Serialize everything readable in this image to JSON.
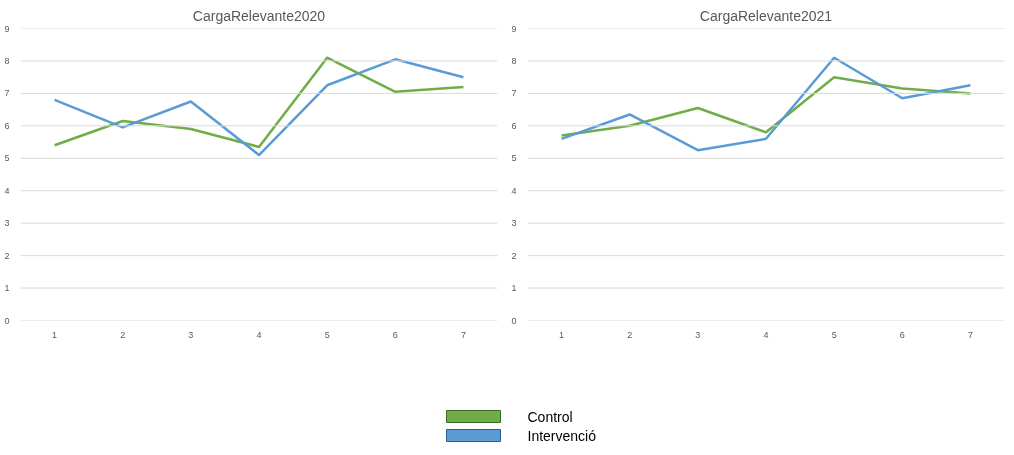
{
  "chart_data": [
    {
      "type": "line",
      "title": "CargaRelevante2020",
      "categories": [
        "1",
        "2",
        "3",
        "4",
        "5",
        "6",
        "7"
      ],
      "ylim": [
        0,
        9
      ],
      "yticks": [
        0,
        1,
        2,
        3,
        4,
        5,
        6,
        7,
        8,
        9
      ],
      "grid": "y",
      "legend": "bottom",
      "marker": "none",
      "series": [
        {
          "name": "Control",
          "color": "#70ad47",
          "values": [
            5.4,
            6.15,
            5.9,
            5.35,
            8.1,
            7.05,
            7.2
          ]
        },
        {
          "name": "Intervenció",
          "color": "#5b9bd5",
          "values": [
            6.8,
            5.95,
            6.75,
            5.1,
            7.25,
            8.05,
            7.5
          ]
        }
      ]
    },
    {
      "type": "line",
      "title": "CargaRelevante2021",
      "categories": [
        "1",
        "2",
        "3",
        "4",
        "5",
        "6",
        "7"
      ],
      "ylim": [
        0,
        9
      ],
      "yticks": [
        0,
        1,
        2,
        3,
        4,
        5,
        6,
        7,
        8,
        9
      ],
      "grid": "y",
      "legend": "bottom",
      "marker": "none",
      "series": [
        {
          "name": "Control",
          "color": "#70ad47",
          "values": [
            5.7,
            6.0,
            6.55,
            5.8,
            7.5,
            7.15,
            7.0
          ]
        },
        {
          "name": "Intervenció",
          "color": "#5b9bd5",
          "values": [
            5.6,
            6.35,
            5.25,
            5.6,
            8.1,
            6.85,
            7.25
          ]
        }
      ]
    }
  ]
}
